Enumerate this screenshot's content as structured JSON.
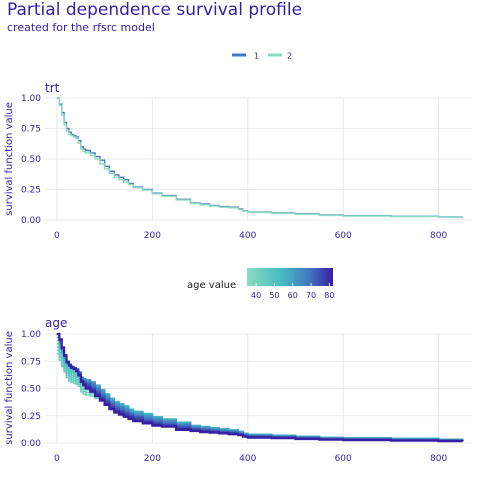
{
  "header": {
    "title": "Partial dependence survival profile",
    "subtitle": "created for the rfsrc model"
  },
  "colors": {
    "title": "#371ea3",
    "axis_text": "#371ea3",
    "grid": "#e4e4ec",
    "trt_series": [
      "#4378bf",
      "#8bdcbe"
    ],
    "age_gradient": [
      "#8bdcbe",
      "#46bac2",
      "#4378bf",
      "#371ea3"
    ]
  },
  "chart_data": [
    {
      "type": "line",
      "panel_title": "trt",
      "xlabel": "",
      "ylabel": "survival function value",
      "xlim": [
        -25,
        870
      ],
      "ylim": [
        0,
        1.0
      ],
      "x_ticks": [
        0,
        200,
        400,
        600,
        800
      ],
      "x_tick_labels": [
        "0",
        "200",
        "400",
        "600",
        "800"
      ],
      "y_ticks": [
        0,
        0.25,
        0.5,
        0.75,
        1.0
      ],
      "y_tick_labels": [
        "0.00",
        "0.25",
        "0.50",
        "0.75",
        "1.00"
      ],
      "grid": true,
      "legend_position": "top",
      "legend": [
        "1",
        "2"
      ],
      "x": [
        0,
        5,
        10,
        15,
        20,
        25,
        30,
        35,
        40,
        45,
        50,
        55,
        60,
        70,
        80,
        90,
        100,
        110,
        120,
        130,
        140,
        150,
        160,
        180,
        200,
        220,
        250,
        280,
        300,
        320,
        340,
        360,
        380,
        390,
        400,
        450,
        500,
        550,
        600,
        700,
        800,
        850
      ],
      "series": [
        {
          "name": "1",
          "values": [
            1.0,
            0.95,
            0.88,
            0.8,
            0.75,
            0.72,
            0.7,
            0.69,
            0.68,
            0.65,
            0.6,
            0.58,
            0.57,
            0.55,
            0.52,
            0.49,
            0.44,
            0.4,
            0.37,
            0.35,
            0.33,
            0.3,
            0.27,
            0.25,
            0.22,
            0.2,
            0.17,
            0.14,
            0.13,
            0.12,
            0.11,
            0.105,
            0.09,
            0.075,
            0.065,
            0.058,
            0.05,
            0.04,
            0.035,
            0.03,
            0.025,
            0.022
          ]
        },
        {
          "name": "2",
          "values": [
            1.0,
            0.94,
            0.86,
            0.78,
            0.73,
            0.7,
            0.69,
            0.68,
            0.67,
            0.63,
            0.58,
            0.56,
            0.55,
            0.53,
            0.5,
            0.46,
            0.42,
            0.38,
            0.35,
            0.33,
            0.31,
            0.29,
            0.265,
            0.245,
            0.215,
            0.195,
            0.165,
            0.135,
            0.125,
            0.115,
            0.105,
            0.1,
            0.087,
            0.072,
            0.062,
            0.055,
            0.047,
            0.038,
            0.033,
            0.028,
            0.023,
            0.02
          ]
        }
      ]
    },
    {
      "type": "line",
      "panel_title": "age",
      "xlabel": "",
      "ylabel": "survival function value",
      "xlim": [
        -25,
        870
      ],
      "ylim": [
        0,
        1.0
      ],
      "x_ticks": [
        0,
        200,
        400,
        600,
        800
      ],
      "x_tick_labels": [
        "0",
        "200",
        "400",
        "600",
        "800"
      ],
      "y_ticks": [
        0,
        0.25,
        0.5,
        0.75,
        1.0
      ],
      "y_tick_labels": [
        "0.00",
        "0.25",
        "0.50",
        "0.75",
        "1.00"
      ],
      "grid": true,
      "legend_position": "top",
      "legend_title": "age value",
      "legend_ticks": [
        "40",
        "50",
        "60",
        "70",
        "80"
      ],
      "legend_range": [
        35,
        82
      ],
      "x": [
        0,
        5,
        10,
        15,
        20,
        25,
        30,
        35,
        40,
        45,
        50,
        55,
        60,
        70,
        80,
        90,
        100,
        110,
        120,
        130,
        140,
        150,
        160,
        180,
        200,
        220,
        250,
        280,
        300,
        320,
        340,
        360,
        380,
        390,
        400,
        450,
        500,
        550,
        600,
        700,
        800,
        850
      ],
      "bands": [
        {
          "age": 82,
          "values": [
            1.0,
            0.95,
            0.87,
            0.8,
            0.74,
            0.71,
            0.69,
            0.68,
            0.66,
            0.62,
            0.56,
            0.53,
            0.5,
            0.47,
            0.43,
            0.39,
            0.35,
            0.31,
            0.28,
            0.26,
            0.24,
            0.22,
            0.2,
            0.18,
            0.16,
            0.15,
            0.12,
            0.11,
            0.1,
            0.095,
            0.088,
            0.08,
            0.072,
            0.058,
            0.05,
            0.045,
            0.037,
            0.03,
            0.027,
            0.022,
            0.017,
            0.014
          ]
        },
        {
          "age": 70,
          "values": [
            1.0,
            0.94,
            0.88,
            0.81,
            0.75,
            0.72,
            0.7,
            0.69,
            0.67,
            0.64,
            0.58,
            0.56,
            0.54,
            0.51,
            0.47,
            0.43,
            0.39,
            0.35,
            0.32,
            0.3,
            0.28,
            0.26,
            0.24,
            0.21,
            0.19,
            0.17,
            0.15,
            0.13,
            0.12,
            0.11,
            0.1,
            0.095,
            0.083,
            0.068,
            0.06,
            0.054,
            0.045,
            0.037,
            0.034,
            0.028,
            0.023,
            0.02
          ]
        },
        {
          "age": 60,
          "values": [
            1.0,
            0.93,
            0.86,
            0.8,
            0.75,
            0.72,
            0.7,
            0.69,
            0.68,
            0.65,
            0.6,
            0.58,
            0.57,
            0.55,
            0.51,
            0.47,
            0.42,
            0.38,
            0.35,
            0.33,
            0.31,
            0.28,
            0.26,
            0.24,
            0.22,
            0.2,
            0.17,
            0.145,
            0.135,
            0.125,
            0.115,
            0.108,
            0.095,
            0.078,
            0.07,
            0.063,
            0.054,
            0.044,
            0.04,
            0.034,
            0.028,
            0.025
          ]
        },
        {
          "age": 50,
          "values": [
            1.0,
            0.9,
            0.82,
            0.76,
            0.72,
            0.7,
            0.68,
            0.67,
            0.66,
            0.63,
            0.6,
            0.59,
            0.58,
            0.56,
            0.53,
            0.49,
            0.45,
            0.41,
            0.38,
            0.36,
            0.34,
            0.31,
            0.29,
            0.27,
            0.24,
            0.22,
            0.19,
            0.16,
            0.15,
            0.14,
            0.13,
            0.12,
            0.105,
            0.088,
            0.079,
            0.071,
            0.061,
            0.05,
            0.046,
            0.039,
            0.032,
            0.029
          ]
        },
        {
          "age": 40,
          "values": [
            0.82,
            0.76,
            0.7,
            0.65,
            0.6,
            0.57,
            0.56,
            0.55,
            0.54,
            0.52,
            0.47,
            0.45,
            0.44,
            0.43,
            0.41,
            0.4,
            0.38,
            0.36,
            0.34,
            0.32,
            0.3,
            0.28,
            0.26,
            0.24,
            0.22,
            0.2,
            0.17,
            0.15,
            0.14,
            0.13,
            0.12,
            0.11,
            0.1,
            0.085,
            0.077,
            0.07,
            0.06,
            0.05,
            0.046,
            0.04,
            0.034,
            0.03
          ]
        }
      ]
    }
  ]
}
